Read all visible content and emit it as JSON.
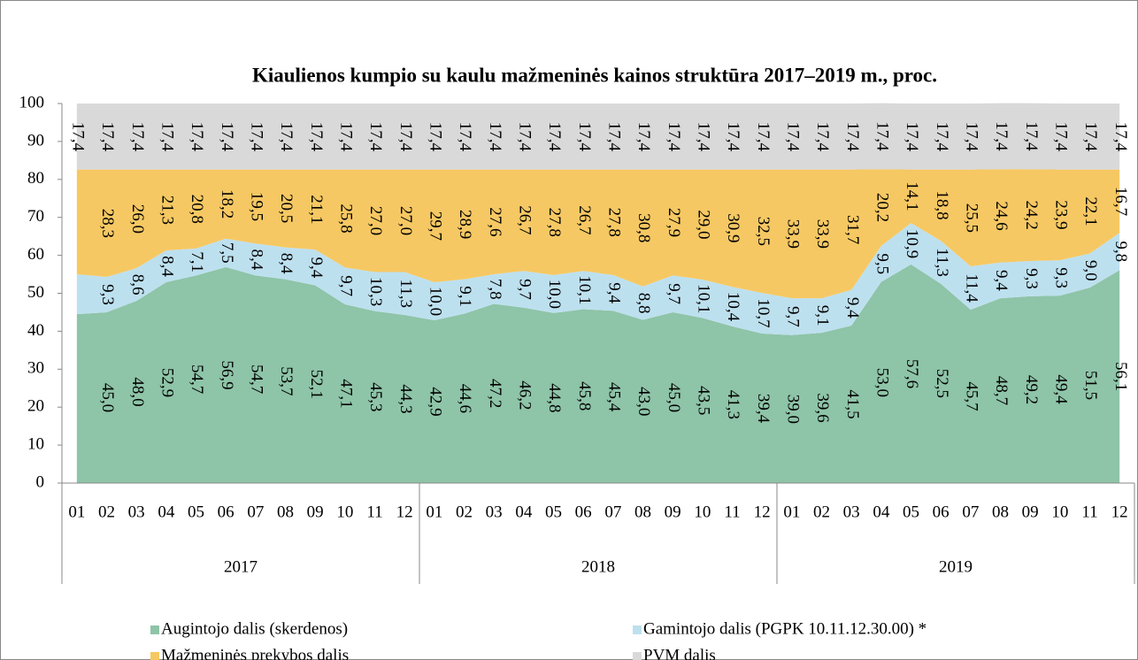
{
  "chart_data": {
    "type": "stacked-area",
    "title": "Kiaulienos kumpio su kaulu mažmeninės kainos struktūra 2017–2019 m., proc.",
    "categories": [
      "01",
      "02",
      "03",
      "04",
      "05",
      "06",
      "07",
      "08",
      "09",
      "10",
      "11",
      "12",
      "01",
      "02",
      "03",
      "04",
      "05",
      "06",
      "07",
      "08",
      "09",
      "10",
      "11",
      "12",
      "01",
      "02",
      "03",
      "04",
      "05",
      "06",
      "07",
      "08",
      "09",
      "10",
      "11",
      "12"
    ],
    "groups": [
      "2017",
      "2018",
      "2019"
    ],
    "ylim": [
      0,
      100
    ],
    "yticks": [
      0,
      10,
      20,
      30,
      40,
      50,
      60,
      70,
      80,
      90,
      100
    ],
    "series": [
      {
        "name": "Augintojo dalis (skerdenos)",
        "color": "#8ec4a8",
        "values": [
          44.5,
          45.0,
          48.0,
          52.9,
          54.7,
          56.9,
          54.7,
          53.7,
          52.1,
          47.1,
          45.3,
          44.3,
          42.9,
          44.6,
          47.2,
          46.2,
          44.8,
          45.8,
          45.4,
          43.0,
          45.0,
          43.5,
          41.3,
          39.4,
          39.0,
          39.6,
          41.5,
          53.0,
          57.6,
          52.5,
          45.7,
          48.7,
          49.2,
          49.4,
          51.5,
          56.1
        ],
        "value_labels": [
          null,
          "45,0",
          "48,0",
          "52,9",
          "54,7",
          "56,9",
          "54,7",
          "53,7",
          "52,1",
          "47,1",
          "45,3",
          "44,3",
          "42,9",
          "44,6",
          "47,2",
          "46,2",
          "44,8",
          "45,8",
          "45,4",
          "43,0",
          "45,0",
          "43,5",
          "41,3",
          "39,4",
          "39,0",
          "39,6",
          "41,5",
          "53,0",
          "57,6",
          "52,5",
          "45,7",
          "48,7",
          "49,2",
          "49,4",
          "51,5",
          "56,1"
        ]
      },
      {
        "name": "Gamintojo dalis (PGPK 10.11.12.30.00) *",
        "color": "#bde0ef",
        "values": [
          10.5,
          9.3,
          8.6,
          8.4,
          7.1,
          7.5,
          8.4,
          8.4,
          9.4,
          9.7,
          10.3,
          11.3,
          10.0,
          9.1,
          7.8,
          9.7,
          10.0,
          10.1,
          9.4,
          8.8,
          9.7,
          10.1,
          10.4,
          10.7,
          9.7,
          9.1,
          9.4,
          9.5,
          10.9,
          11.3,
          11.4,
          9.4,
          9.3,
          9.3,
          9.0,
          9.8
        ],
        "value_labels": [
          null,
          "9,3",
          "8,6",
          "8,4",
          "7,1",
          "7,5",
          "8,4",
          "8,4",
          "9,4",
          "9,7",
          "10,3",
          "11,3",
          "10,0",
          "9,1",
          "7,8",
          "9,7",
          "10,0",
          "10,1",
          "9,4",
          "8,8",
          "9,7",
          "10,1",
          "10,4",
          "10,7",
          "9,7",
          "9,1",
          "9,4",
          "9,5",
          "10,9",
          "11,3",
          "11,4",
          "9,4",
          "9,3",
          "9,3",
          "9,0",
          "9,8"
        ]
      },
      {
        "name": "Mažmeninės prekybos dalis",
        "color": "#f6c863",
        "values": [
          27.6,
          28.3,
          26.0,
          21.3,
          20.8,
          18.2,
          19.5,
          20.5,
          21.1,
          25.8,
          27.0,
          27.0,
          29.7,
          28.9,
          27.6,
          26.7,
          27.8,
          26.7,
          27.8,
          30.8,
          27.9,
          29.0,
          30.9,
          32.5,
          33.9,
          33.9,
          31.7,
          20.2,
          14.1,
          18.8,
          25.5,
          24.6,
          24.2,
          23.9,
          22.1,
          16.7
        ],
        "value_labels": [
          null,
          "28,3",
          "26,0",
          "21,3",
          "20,8",
          "18,2",
          "19,5",
          "20,5",
          "21,1",
          "25,8",
          "27,0",
          "27,0",
          "29,7",
          "28,9",
          "27,6",
          "26,7",
          "27,8",
          "26,7",
          "27,8",
          "30,8",
          "27,9",
          "29,0",
          "30,9",
          "32,5",
          "33,9",
          "33,9",
          "31,7",
          "20,2",
          "14,1",
          "18,8",
          "25,5",
          "24,6",
          "24,2",
          "23,9",
          "22,1",
          "16,7"
        ]
      },
      {
        "name": "PVM dalis",
        "color": "#d9d9d9",
        "values": [
          17.4,
          17.4,
          17.4,
          17.4,
          17.4,
          17.4,
          17.4,
          17.4,
          17.4,
          17.4,
          17.4,
          17.4,
          17.4,
          17.4,
          17.4,
          17.4,
          17.4,
          17.4,
          17.4,
          17.4,
          17.4,
          17.4,
          17.4,
          17.4,
          17.4,
          17.4,
          17.4,
          17.4,
          17.4,
          17.4,
          17.4,
          17.4,
          17.4,
          17.4,
          17.4,
          17.4
        ],
        "value_labels": [
          "17,4",
          "17,4",
          "17,4",
          "17,4",
          "17,4",
          "17,4",
          "17,4",
          "17,4",
          "17,4",
          "17,4",
          "17,4",
          "17,4",
          "17,4",
          "17,4",
          "17,4",
          "17,4",
          "17,4",
          "17,4",
          "17,4",
          "17,4",
          "17,4",
          "17,4",
          "17,4",
          "17,4",
          "17,4",
          "17,4",
          "17,4",
          "17,4",
          "17,4",
          "17,4",
          "17,4",
          "17,4",
          "17,4",
          "17,4",
          "17,4",
          "17,4"
        ]
      }
    ]
  }
}
